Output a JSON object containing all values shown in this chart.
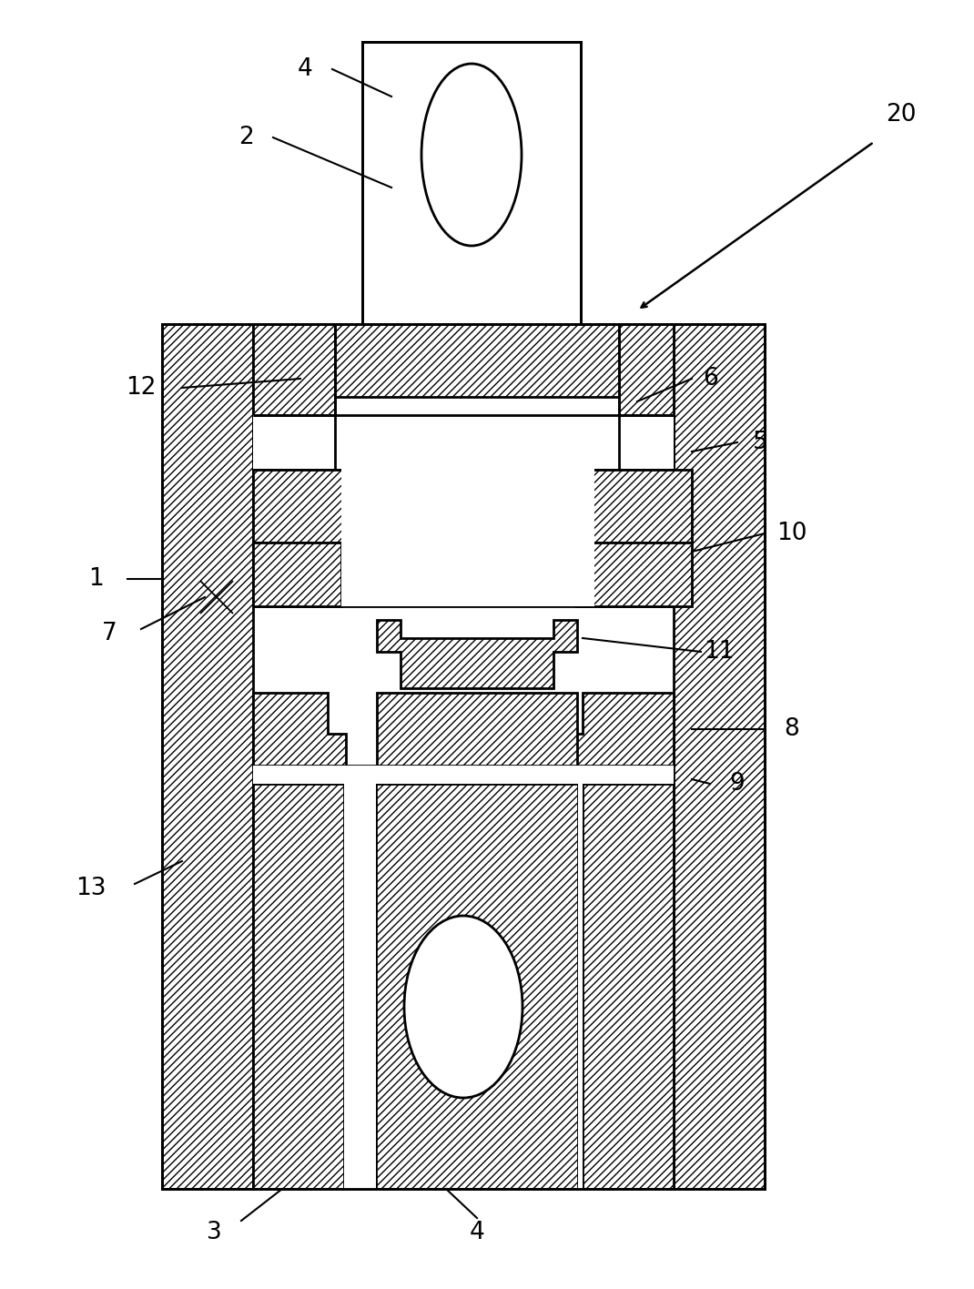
{
  "bg_color": "#ffffff",
  "fig_width": 10.7,
  "fig_height": 14.16
}
